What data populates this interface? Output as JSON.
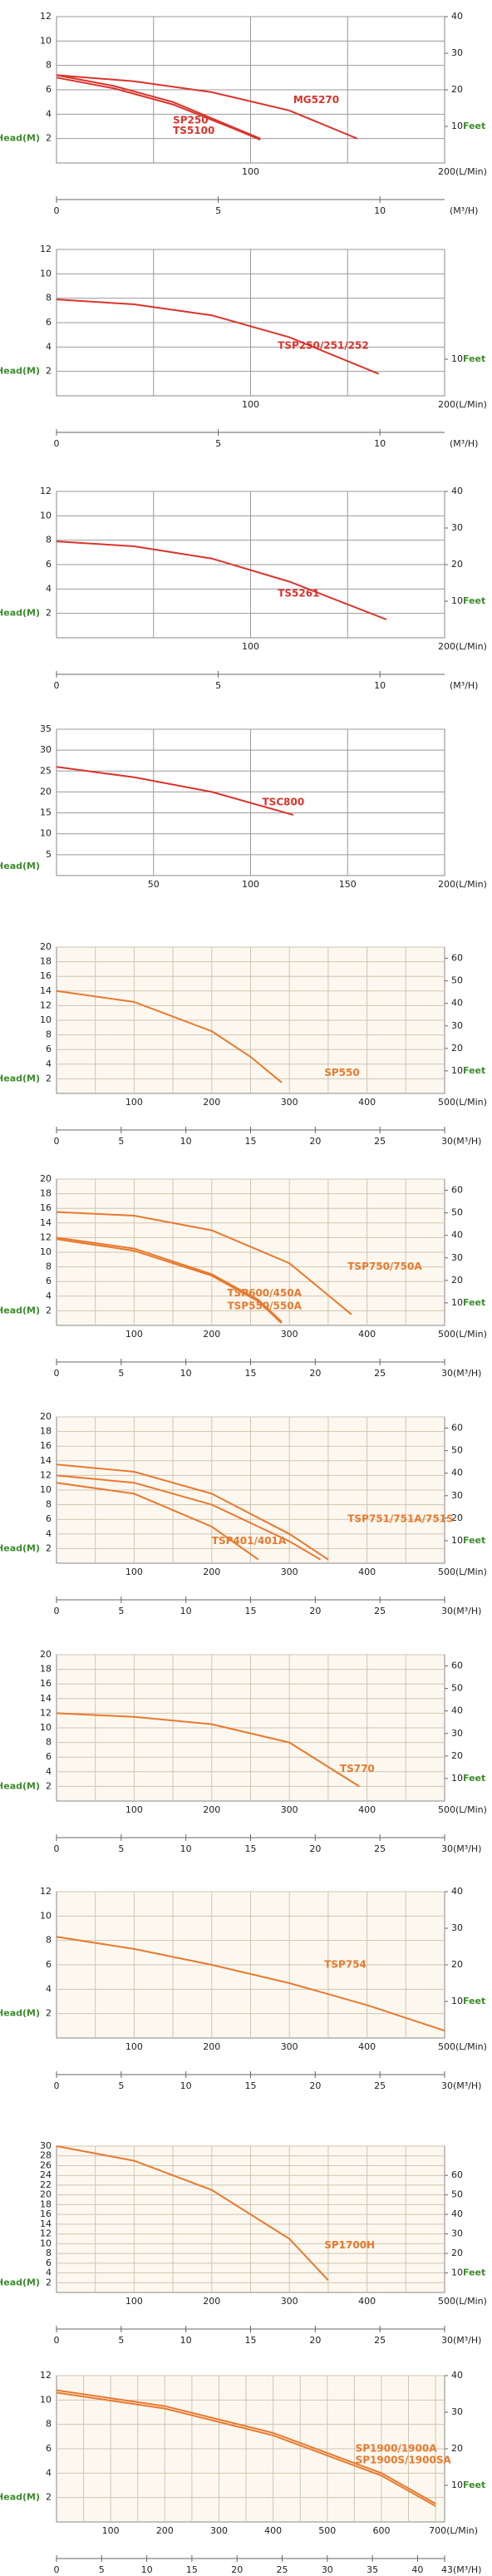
{
  "chart_data": [
    {
      "type": "line",
      "y_label": "Head(M)",
      "y2_label": "Feet",
      "x2_label": "(M³/H)",
      "ylim": [
        0,
        12
      ],
      "yticks": [
        2,
        4,
        6,
        8,
        10,
        12
      ],
      "y2lim": [
        0,
        40
      ],
      "y2ticks": [
        10,
        20,
        30,
        40
      ],
      "xlim": [
        0,
        200
      ],
      "xticks": [
        100,
        {
          "value": 200,
          "label": "200(L/Min)"
        }
      ],
      "xgrid": [
        50,
        100,
        150
      ],
      "x2lim": [
        0,
        12
      ],
      "x2ticks": [
        0,
        5,
        10
      ],
      "color": "#d9342b",
      "series": [
        {
          "name": "MG5270",
          "color": "#d9342b",
          "x": [
            0,
            40,
            80,
            120,
            155
          ],
          "values": [
            7.2,
            6.7,
            5.8,
            4.3,
            2.0
          ]
        },
        {
          "name": "SP250",
          "color": "#d9342b",
          "x": [
            0,
            30,
            60,
            90,
            105
          ],
          "values": [
            7.2,
            6.3,
            5.0,
            3.0,
            2.0
          ]
        },
        {
          "name": "TS5100",
          "color": "#d9342b",
          "x": [
            0,
            30,
            60,
            90,
            105
          ],
          "values": [
            7.0,
            6.1,
            4.8,
            2.9,
            1.9
          ]
        }
      ]
    },
    {
      "type": "line",
      "y_label": "Head(M)",
      "y2_label": "Feet",
      "x2_label": "(M³/H)",
      "ylim": [
        0,
        12
      ],
      "yticks": [
        2,
        4,
        6,
        8,
        10,
        12
      ],
      "y2lim": [
        0,
        40
      ],
      "y2ticks": [
        10
      ],
      "xlim": [
        0,
        200
      ],
      "xticks": [
        100,
        {
          "value": 200,
          "label": "200(L/Min)"
        }
      ],
      "xgrid": [
        50,
        100,
        150
      ],
      "x2lim": [
        0,
        12
      ],
      "x2ticks": [
        0,
        5,
        10
      ],
      "color": "#d9342b",
      "series": [
        {
          "name": "TSP250/251/252",
          "color": "#d9342b",
          "x": [
            0,
            40,
            80,
            120,
            166
          ],
          "values": [
            7.9,
            7.5,
            6.6,
            4.8,
            1.8
          ]
        }
      ]
    },
    {
      "type": "line",
      "y_label": "Head(M)",
      "y2_label": "Feet",
      "x2_label": "(M³/H)",
      "ylim": [
        0,
        12
      ],
      "yticks": [
        2,
        4,
        6,
        8,
        10,
        12
      ],
      "y2lim": [
        0,
        40
      ],
      "y2ticks": [
        10,
        20,
        30,
        40
      ],
      "xlim": [
        0,
        200
      ],
      "xticks": [
        100,
        {
          "value": 200,
          "label": "200(L/Min)"
        }
      ],
      "xgrid": [
        50,
        100,
        150
      ],
      "x2lim": [
        0,
        12
      ],
      "x2ticks": [
        0,
        5,
        10
      ],
      "color": "#d9342b",
      "series": [
        {
          "name": "TS5261",
          "color": "#d9342b",
          "x": [
            0,
            40,
            80,
            120,
            170
          ],
          "values": [
            7.9,
            7.5,
            6.5,
            4.6,
            1.5
          ]
        }
      ]
    },
    {
      "type": "line",
      "y_label": "Head(M)",
      "ylim": [
        0,
        35
      ],
      "yticks": [
        5,
        10,
        15,
        20,
        25,
        30,
        35
      ],
      "xlim": [
        0,
        200
      ],
      "xticks": [
        50,
        100,
        150,
        {
          "value": 200,
          "label": "200(L/Min)"
        }
      ],
      "xgrid": [
        50,
        100,
        150
      ],
      "color": "#d9342b",
      "series": [
        {
          "name": "TSC800",
          "color": "#d9342b",
          "x": [
            0,
            40,
            80,
            122
          ],
          "values": [
            26,
            23.5,
            20,
            14.5
          ]
        }
      ]
    },
    {
      "type": "line",
      "y_label": "Head(M)",
      "y2_label": "Feet",
      "ylim": [
        0,
        20
      ],
      "yticks": [
        2,
        4,
        6,
        8,
        10,
        12,
        14,
        16,
        18,
        20
      ],
      "y2lim": [
        0,
        65
      ],
      "y2ticks": [
        10,
        20,
        30,
        40,
        50,
        60
      ],
      "xlim": [
        0,
        500
      ],
      "xticks": [
        100,
        200,
        300,
        400,
        {
          "value": 500,
          "label": "500(L/Min)"
        }
      ],
      "xgrid": [
        50,
        100,
        150,
        200,
        250,
        300,
        350,
        400,
        450
      ],
      "x2lim": [
        0,
        30
      ],
      "x2ticks": [
        0,
        5,
        10,
        15,
        20,
        25,
        {
          "value": 30,
          "label": "30(M³/H)"
        }
      ],
      "color": "#e8792e",
      "series": [
        {
          "name": "SP550",
          "color": "#e8792e",
          "x": [
            0,
            100,
            200,
            250,
            290
          ],
          "values": [
            14,
            12.5,
            8.5,
            5,
            1.5
          ]
        }
      ]
    },
    {
      "type": "line",
      "y_label": "Head(M)",
      "y2_label": "Feet",
      "ylim": [
        0,
        20
      ],
      "yticks": [
        2,
        4,
        6,
        8,
        10,
        12,
        14,
        16,
        18,
        20
      ],
      "y2lim": [
        0,
        65
      ],
      "y2ticks": [
        10,
        20,
        30,
        40,
        50,
        60
      ],
      "xlim": [
        0,
        500
      ],
      "xticks": [
        100,
        200,
        300,
        400,
        {
          "value": 500,
          "label": "500(L/Min)"
        }
      ],
      "xgrid": [
        50,
        100,
        150,
        200,
        250,
        300,
        350,
        400,
        450
      ],
      "x2lim": [
        0,
        30
      ],
      "x2ticks": [
        0,
        5,
        10,
        15,
        20,
        25,
        {
          "value": 30,
          "label": "30(M³/H)"
        }
      ],
      "color": "#e8792e",
      "series": [
        {
          "name": "TSP750/750A",
          "color": "#e8792e",
          "x": [
            0,
            100,
            200,
            300,
            380
          ],
          "values": [
            15.5,
            15,
            13,
            8.5,
            1.5
          ]
        },
        {
          "name": "TSP600/450A",
          "color": "#e8792e",
          "x": [
            0,
            100,
            200,
            260,
            290
          ],
          "values": [
            12,
            10.5,
            7,
            3.5,
            0.5
          ]
        },
        {
          "name": "TSP550/550A",
          "color": "#e8792e",
          "x": [
            0,
            100,
            200,
            260,
            290
          ],
          "values": [
            11.8,
            10.2,
            6.8,
            3.3,
            0.3
          ]
        }
      ]
    },
    {
      "type": "line",
      "y_label": "Head(M)",
      "y2_label": "Feet",
      "ylim": [
        0,
        20
      ],
      "yticks": [
        2,
        4,
        6,
        8,
        10,
        12,
        14,
        16,
        18,
        20
      ],
      "y2lim": [
        0,
        65
      ],
      "y2ticks": [
        10,
        20,
        30,
        40,
        50,
        60
      ],
      "xlim": [
        0,
        500
      ],
      "xticks": [
        100,
        200,
        300,
        400,
        {
          "value": 500,
          "label": "500(L/Min)"
        }
      ],
      "xgrid": [
        50,
        100,
        150,
        200,
        250,
        300,
        350,
        400,
        450
      ],
      "x2lim": [
        0,
        30
      ],
      "x2ticks": [
        0,
        5,
        10,
        15,
        20,
        25,
        {
          "value": 30,
          "label": "30(M³/H)"
        }
      ],
      "color": "#e8792e",
      "series": [
        {
          "name": "TSP751/751A/751S",
          "color": "#e8792e",
          "x": [
            0,
            100,
            200,
            300,
            350
          ],
          "values": [
            13.5,
            12.5,
            9.5,
            4,
            0.5
          ]
        },
        {
          "name": "TSP401/401A",
          "color": "#e8792e",
          "x": [
            0,
            100,
            200,
            260
          ],
          "values": [
            11,
            9.5,
            5,
            0.5
          ]
        },
        {
          "color": "#e8792e",
          "x": [
            0,
            100,
            200,
            300,
            340
          ],
          "values": [
            12,
            11,
            8,
            3,
            0.5
          ]
        }
      ]
    },
    {
      "type": "line",
      "y_label": "Head(M)",
      "y2_label": "Feet",
      "ylim": [
        0,
        20
      ],
      "yticks": [
        2,
        4,
        6,
        8,
        10,
        12,
        14,
        16,
        18,
        20
      ],
      "y2lim": [
        0,
        65
      ],
      "y2ticks": [
        10,
        20,
        30,
        40,
        50,
        60
      ],
      "xlim": [
        0,
        500
      ],
      "xticks": [
        100,
        200,
        300,
        400,
        {
          "value": 500,
          "label": "500(L/Min)"
        }
      ],
      "xgrid": [
        50,
        100,
        150,
        200,
        250,
        300,
        350,
        400,
        450
      ],
      "x2lim": [
        0,
        30
      ],
      "x2ticks": [
        0,
        5,
        10,
        15,
        20,
        25,
        {
          "value": 30,
          "label": "30(M³/H)"
        }
      ],
      "color": "#e8792e",
      "series": [
        {
          "name": "TS770",
          "color": "#e8792e",
          "x": [
            0,
            100,
            200,
            300,
            390
          ],
          "values": [
            12,
            11.5,
            10.5,
            8,
            2
          ]
        }
      ]
    },
    {
      "type": "line",
      "y_label": "Head(M)",
      "y2_label": "Feet",
      "ylim": [
        0,
        12
      ],
      "yticks": [
        2,
        4,
        6,
        8,
        10,
        12
      ],
      "y2lim": [
        0,
        40
      ],
      "y2ticks": [
        10,
        20,
        30,
        40
      ],
      "xlim": [
        0,
        500
      ],
      "xticks": [
        100,
        200,
        300,
        400,
        {
          "value": 500,
          "label": "500(L/Min)"
        }
      ],
      "xgrid": [
        50,
        100,
        150,
        200,
        250,
        300,
        350,
        400,
        450
      ],
      "x2lim": [
        0,
        30
      ],
      "x2ticks": [
        0,
        5,
        10,
        15,
        20,
        25,
        {
          "value": 30,
          "label": "30(M³/H)"
        }
      ],
      "color": "#e8792e",
      "series": [
        {
          "name": "TSP754",
          "color": "#e8792e",
          "x": [
            0,
            100,
            200,
            300,
            400,
            500
          ],
          "values": [
            8.3,
            7.3,
            6.0,
            4.5,
            2.7,
            0.6
          ]
        }
      ]
    },
    {
      "type": "line",
      "y_label": "Head(M)",
      "y2_label": "Feet",
      "ylim": [
        0,
        30
      ],
      "yticks": [
        2,
        4,
        6,
        8,
        10,
        12,
        14,
        16,
        18,
        20,
        22,
        24,
        26,
        28,
        30
      ],
      "y2lim": [
        0,
        75
      ],
      "y2ticks": [
        10,
        20,
        30,
        40,
        50,
        60
      ],
      "xlim": [
        0,
        500
      ],
      "xticks": [
        100,
        200,
        300,
        400,
        {
          "value": 500,
          "label": "500(L/Min)"
        }
      ],
      "xgrid": [
        50,
        100,
        150,
        200,
        250,
        300,
        350,
        400,
        450
      ],
      "x2lim": [
        0,
        30
      ],
      "x2ticks": [
        0,
        5,
        10,
        15,
        20,
        25,
        {
          "value": 30,
          "label": "30(M³/H)"
        }
      ],
      "color": "#e8792e",
      "series": [
        {
          "name": "SP1700H",
          "color": "#e8792e",
          "x": [
            0,
            100,
            200,
            300,
            350
          ],
          "values": [
            30,
            27,
            21,
            11,
            2.5
          ]
        }
      ]
    },
    {
      "type": "line",
      "y_label": "Head(M)",
      "y2_label": "Feet",
      "ylim": [
        0,
        12
      ],
      "yticks": [
        2,
        4,
        6,
        8,
        10,
        12
      ],
      "y2lim": [
        0,
        40
      ],
      "y2ticks": [
        10,
        20,
        30,
        40
      ],
      "xlim": [
        0,
        716.7
      ],
      "xticks": [
        100,
        200,
        300,
        400,
        500,
        600,
        {
          "value": 700,
          "label": "700(L/Min)"
        }
      ],
      "xgrid": [
        50,
        100,
        150,
        200,
        250,
        300,
        350,
        400,
        450,
        500,
        550,
        600,
        650,
        700
      ],
      "x2lim": [
        0,
        43
      ],
      "x2ticks": [
        0,
        5,
        10,
        15,
        20,
        25,
        30,
        35,
        40,
        {
          "value": 43,
          "label": "43(M³/H)"
        }
      ],
      "color": "#e8792e",
      "series": [
        {
          "name": "SP1900/1900A",
          "color": "#e8792e",
          "x": [
            0,
            200,
            400,
            600,
            700
          ],
          "values": [
            10.8,
            9.5,
            7.3,
            4,
            1.5
          ]
        },
        {
          "name": "SP1900S/1900SA",
          "color": "#e8792e",
          "x": [
            0,
            200,
            400,
            600,
            700
          ],
          "values": [
            10.6,
            9.3,
            7.1,
            3.8,
            1.3
          ]
        }
      ]
    }
  ]
}
